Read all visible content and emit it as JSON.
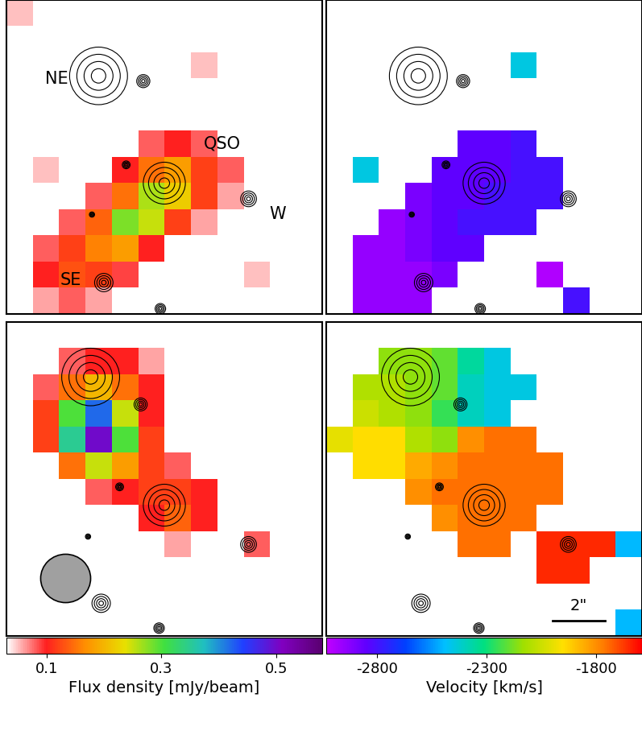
{
  "chart_data": {
    "type": "heatmap",
    "tick_labels": false,
    "xlim": [
      -6,
      6
    ],
    "ylim": [
      -5,
      7
    ],
    "columns": [
      {
        "colorbar": {
          "label": "Flux density [mJy/beam]",
          "range": [
            0.03,
            0.58
          ],
          "ticks": [
            0.1,
            0.3,
            0.5
          ],
          "colors": [
            "#ffffff",
            "#ff2020",
            "#ff9000",
            "#e8e000",
            "#40e040",
            "#20c0c0",
            "#2040ff",
            "#8000c0",
            "#5a0070"
          ]
        },
        "panels": [
          {
            "cells": [
              [
                0.05,
                null,
                null,
                null,
                null,
                null,
                null,
                null,
                null,
                null,
                null,
                null
              ],
              [
                null,
                null,
                null,
                null,
                null,
                null,
                null,
                null,
                null,
                null,
                null,
                null
              ],
              [
                null,
                null,
                null,
                null,
                null,
                null,
                null,
                0.05,
                null,
                null,
                null,
                null
              ],
              [
                null,
                null,
                null,
                null,
                null,
                null,
                null,
                null,
                null,
                null,
                null,
                null
              ],
              [
                null,
                null,
                null,
                null,
                null,
                null,
                null,
                null,
                null,
                null,
                null,
                null
              ],
              [
                null,
                null,
                null,
                null,
                null,
                0.08,
                0.1,
                0.08,
                null,
                null,
                null,
                null
              ],
              [
                null,
                0.05,
                null,
                null,
                0.1,
                0.15,
                0.18,
                0.12,
                0.08,
                null,
                null,
                null
              ],
              [
                null,
                null,
                null,
                0.08,
                0.15,
                0.26,
                0.22,
                0.12,
                0.06,
                null,
                null,
                null
              ],
              [
                null,
                null,
                0.08,
                0.14,
                0.28,
                0.25,
                0.12,
                0.06,
                null,
                null,
                null,
                null
              ],
              [
                null,
                0.08,
                0.12,
                0.16,
                0.18,
                0.1,
                null,
                null,
                null,
                null,
                null,
                null
              ],
              [
                null,
                0.1,
                0.13,
                0.12,
                0.09,
                null,
                null,
                null,
                null,
                0.05,
                null,
                null
              ],
              [
                null,
                0.06,
                0.08,
                0.06,
                null,
                null,
                null,
                null,
                null,
                null,
                null,
                null
              ]
            ]
          },
          {
            "cells": [
              [
                null,
                null,
                null,
                null,
                null,
                null,
                null,
                null,
                null,
                null,
                null,
                null
              ],
              [
                null,
                null,
                0.08,
                0.1,
                0.1,
                0.06,
                null,
                null,
                null,
                null,
                null,
                null
              ],
              [
                null,
                0.08,
                0.15,
                0.2,
                0.15,
                0.1,
                null,
                null,
                null,
                null,
                null,
                null
              ],
              [
                null,
                0.12,
                0.3,
                0.42,
                0.25,
                0.1,
                null,
                null,
                null,
                null,
                null,
                null
              ],
              [
                null,
                0.12,
                0.35,
                0.5,
                0.3,
                0.12,
                null,
                null,
                null,
                null,
                null,
                null
              ],
              [
                null,
                null,
                0.15,
                0.25,
                0.18,
                0.12,
                0.08,
                null,
                null,
                null,
                null,
                null
              ],
              [
                null,
                null,
                null,
                0.08,
                0.1,
                0.12,
                0.12,
                0.1,
                null,
                null,
                null,
                null
              ],
              [
                null,
                null,
                null,
                null,
                null,
                0.1,
                0.14,
                0.1,
                null,
                null,
                null,
                null
              ],
              [
                null,
                null,
                null,
                null,
                null,
                null,
                0.06,
                null,
                null,
                0.08,
                null,
                null
              ],
              [
                null,
                null,
                null,
                null,
                null,
                null,
                null,
                null,
                null,
                null,
                null,
                null
              ],
              [
                null,
                null,
                null,
                null,
                null,
                null,
                null,
                null,
                null,
                null,
                null,
                null
              ],
              [
                null,
                null,
                null,
                null,
                null,
                null,
                null,
                null,
                null,
                null,
                null,
                null
              ]
            ],
            "beam": {
              "x": -3.75,
              "y": -2.8,
              "width": 1.9,
              "height": 1.85
            }
          }
        ]
      },
      {
        "colorbar": {
          "label": "Velocity [km/s]",
          "range": [
            -3030,
            -1590
          ],
          "ticks": [
            -2800,
            -2300,
            -1800
          ],
          "colors": [
            "#c000ff",
            "#6000ff",
            "#0040ff",
            "#00c0ff",
            "#00e080",
            "#a0e000",
            "#ffe000",
            "#ff8000",
            "#ff0000"
          ]
        },
        "panels": [
          {
            "cells": [
              [
                null,
                null,
                null,
                null,
                null,
                null,
                null,
                null,
                null,
                null,
                null,
                null
              ],
              [
                null,
                null,
                null,
                null,
                null,
                null,
                null,
                null,
                null,
                null,
                null,
                null
              ],
              [
                null,
                null,
                null,
                null,
                null,
                null,
                null,
                -2450,
                null,
                null,
                null,
                null
              ],
              [
                null,
                null,
                null,
                null,
                null,
                null,
                null,
                null,
                null,
                null,
                null,
                null
              ],
              [
                null,
                null,
                null,
                null,
                null,
                null,
                null,
                null,
                null,
                null,
                null,
                null
              ],
              [
                null,
                null,
                null,
                null,
                null,
                -2850,
                -2850,
                -2800,
                null,
                null,
                null,
                null
              ],
              [
                null,
                -2450,
                null,
                null,
                -2850,
                -2850,
                -2850,
                -2800,
                -2800,
                null,
                null,
                null
              ],
              [
                null,
                null,
                null,
                -2900,
                -2850,
                -2850,
                -2800,
                -2800,
                -2800,
                null,
                null,
                null
              ],
              [
                null,
                null,
                -2950,
                -2900,
                -2850,
                -2800,
                -2800,
                -2800,
                null,
                null,
                null,
                null
              ],
              [
                null,
                -2950,
                -2950,
                -2900,
                -2850,
                -2850,
                null,
                null,
                null,
                null,
                null,
                null
              ],
              [
                null,
                -2950,
                -2950,
                -2950,
                -2900,
                null,
                null,
                null,
                -3000,
                null,
                null,
                null
              ],
              [
                null,
                -2950,
                -2950,
                -2950,
                null,
                null,
                null,
                null,
                null,
                -2800,
                null,
                null
              ]
            ]
          },
          {
            "cells": [
              [
                null,
                null,
                null,
                null,
                null,
                null,
                null,
                null,
                null,
                null,
                null,
                null
              ],
              [
                null,
                null,
                -2150,
                -2150,
                -2200,
                -2350,
                -2450,
                null,
                null,
                null,
                null,
                null
              ],
              [
                null,
                -2100,
                -2100,
                -2150,
                -2200,
                -2400,
                -2450,
                -2450,
                null,
                null,
                null,
                null
              ],
              [
                null,
                -2050,
                -2100,
                -2150,
                -2250,
                -2400,
                -2450,
                null,
                null,
                null,
                null,
                null
              ],
              [
                -2000,
                -1950,
                -1950,
                -2100,
                -2150,
                -1800,
                -1750,
                -1750,
                null,
                null,
                null,
                null
              ],
              [
                null,
                -1950,
                -1950,
                -1850,
                -1800,
                -1750,
                -1750,
                -1750,
                -1750,
                null,
                null,
                null
              ],
              [
                null,
                null,
                null,
                -1800,
                -1750,
                -1750,
                -1750,
                -1750,
                -1750,
                null,
                null,
                null
              ],
              [
                null,
                null,
                null,
                null,
                -1800,
                -1750,
                -1750,
                -1750,
                null,
                null,
                null,
                null
              ],
              [
                null,
                null,
                null,
                null,
                null,
                -1750,
                -1750,
                null,
                -1650,
                -1650,
                -1650,
                -2500
              ],
              [
                null,
                null,
                null,
                null,
                null,
                null,
                null,
                null,
                -1650,
                -1650,
                null,
                null
              ],
              [
                null,
                null,
                null,
                null,
                null,
                null,
                null,
                null,
                null,
                null,
                null,
                null
              ],
              [
                null,
                null,
                null,
                null,
                null,
                null,
                null,
                null,
                null,
                null,
                null,
                -2500
              ]
            ],
            "scale_bar": {
              "label": "2\"",
              "length": 2
            }
          }
        ]
      }
    ],
    "sources": [
      [
        {
          "label": "NE",
          "x": -2.5,
          "y": 4.1,
          "size": 2.2,
          "label_x": -4.1,
          "label_y": 4.0
        },
        {
          "label": "QSO",
          "x": 0,
          "y": 0,
          "size": 1.6,
          "label_x": 2.2,
          "label_y": 1.5
        },
        {
          "label": "W",
          "x": 3.2,
          "y": -0.6,
          "size": 0.6,
          "label_x": 4.3,
          "label_y": -1.2
        },
        {
          "label": "SE",
          "x": -2.3,
          "y": -3.8,
          "size": 0.7,
          "label_x": -3.55,
          "label_y": -3.7
        },
        {
          "label": null,
          "x": -0.8,
          "y": 3.9,
          "size": 0.5
        },
        {
          "label": null,
          "x": -0.15,
          "y": -4.8,
          "size": 0.4
        },
        {
          "label": null,
          "x": -1.45,
          "y": 0.7,
          "size": 0.3
        },
        {
          "label": null,
          "x": -2.75,
          "y": -1.2,
          "size": 0.2
        }
      ],
      [
        {
          "label": null,
          "x": -2.8,
          "y": 4.9,
          "size": 2.2
        },
        {
          "label": null,
          "x": 0,
          "y": 0,
          "size": 1.6
        },
        {
          "label": null,
          "x": -0.9,
          "y": 3.85,
          "size": 0.5
        },
        {
          "label": null,
          "x": 3.2,
          "y": -1.5,
          "size": 0.6
        },
        {
          "label": null,
          "x": -2.4,
          "y": -3.75,
          "size": 0.7
        },
        {
          "label": null,
          "x": -1.7,
          "y": 0.7,
          "size": 0.3
        },
        {
          "label": null,
          "x": -0.2,
          "y": -4.7,
          "size": 0.4
        },
        {
          "label": null,
          "x": -2.9,
          "y": -1.2,
          "size": 0.2
        }
      ]
    ]
  }
}
